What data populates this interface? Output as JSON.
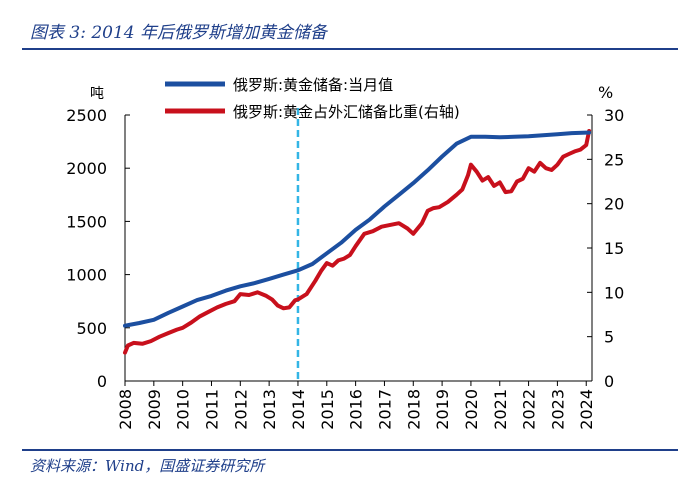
{
  "figure": {
    "title": "图表 3:  2014 年后俄罗斯增加黄金储备",
    "source": "资料来源：Wind，国盛证券研究所"
  },
  "colors": {
    "series_left": "#1c4fa0",
    "series_right": "#c8101c",
    "marker": "#33b5e5",
    "header": "#1f3f8a"
  },
  "chart_data": {
    "type": "line",
    "left_unit": "吨",
    "right_unit": "%",
    "ylim_left": [
      0,
      2500
    ],
    "ylim_right": [
      0,
      30
    ],
    "yticks_left": [
      "0",
      "500",
      "1000",
      "1500",
      "2000",
      "2500"
    ],
    "yticks_right": [
      "0",
      "5",
      "10",
      "15",
      "20",
      "25",
      "30"
    ],
    "xlim": [
      2008,
      2024.2
    ],
    "xticks": [
      "2008",
      "2009",
      "2010",
      "2011",
      "2012",
      "2013",
      "2014",
      "2015",
      "2016",
      "2017",
      "2018",
      "2019",
      "2020",
      "2021",
      "2022",
      "2023",
      "2024"
    ],
    "reference_line": {
      "x": 2014.0,
      "style": "dashed"
    },
    "series": [
      {
        "name": "俄罗斯:黄金储备:当月值",
        "axis": "left",
        "x": [
          2008.0,
          2008.5,
          2009.0,
          2009.5,
          2010.0,
          2010.5,
          2011.0,
          2011.5,
          2012.0,
          2012.5,
          2013.0,
          2013.5,
          2014.0,
          2014.5,
          2015.0,
          2015.5,
          2016.0,
          2016.5,
          2017.0,
          2017.5,
          2018.0,
          2018.5,
          2019.0,
          2019.5,
          2020.0,
          2020.5,
          2021.0,
          2021.5,
          2022.0,
          2022.5,
          2023.0,
          2023.5,
          2024.0,
          2024.1
        ],
        "values": [
          520,
          545,
          575,
          640,
          700,
          760,
          800,
          850,
          890,
          920,
          960,
          1000,
          1040,
          1100,
          1200,
          1300,
          1420,
          1520,
          1640,
          1750,
          1860,
          1980,
          2110,
          2230,
          2295,
          2295,
          2290,
          2295,
          2300,
          2310,
          2320,
          2330,
          2335,
          2335
        ]
      },
      {
        "name": "俄罗斯:黄金占外汇储备比重(右轴)",
        "axis": "right",
        "x": [
          2008.0,
          2008.1,
          2008.3,
          2008.6,
          2008.9,
          2009.2,
          2009.5,
          2009.8,
          2010.0,
          2010.3,
          2010.6,
          2010.9,
          2011.2,
          2011.5,
          2011.8,
          2012.0,
          2012.3,
          2012.6,
          2012.9,
          2013.1,
          2013.3,
          2013.5,
          2013.7,
          2013.9,
          2014.0,
          2014.3,
          2014.6,
          2014.8,
          2015.0,
          2015.2,
          2015.4,
          2015.6,
          2015.8,
          2016.0,
          2016.3,
          2016.6,
          2016.9,
          2017.2,
          2017.5,
          2017.8,
          2018.0,
          2018.3,
          2018.5,
          2018.7,
          2018.9,
          2019.2,
          2019.5,
          2019.7,
          2019.9,
          2020.0,
          2020.2,
          2020.4,
          2020.6,
          2020.8,
          2021.0,
          2021.2,
          2021.4,
          2021.6,
          2021.8,
          2022.0,
          2022.2,
          2022.4,
          2022.6,
          2022.8,
          2023.0,
          2023.2,
          2023.4,
          2023.6,
          2023.8,
          2024.0,
          2024.1
        ],
        "values": [
          3.2,
          4.0,
          4.3,
          4.2,
          4.5,
          5.0,
          5.4,
          5.8,
          6.0,
          6.6,
          7.3,
          7.8,
          8.3,
          8.7,
          9.0,
          9.8,
          9.7,
          10.0,
          9.6,
          9.2,
          8.5,
          8.2,
          8.3,
          9.1,
          9.2,
          9.8,
          11.3,
          12.4,
          13.3,
          13.0,
          13.6,
          13.8,
          14.2,
          15.2,
          16.6,
          16.9,
          17.4,
          17.6,
          17.8,
          17.2,
          16.6,
          17.8,
          19.2,
          19.5,
          19.6,
          20.2,
          21.0,
          21.6,
          23.2,
          24.4,
          23.6,
          22.6,
          23.0,
          22.0,
          22.4,
          21.3,
          21.4,
          22.5,
          22.8,
          24.0,
          23.6,
          24.6,
          24.0,
          23.8,
          24.4,
          25.3,
          25.6,
          25.9,
          26.1,
          26.6,
          28.2
        ]
      }
    ]
  }
}
